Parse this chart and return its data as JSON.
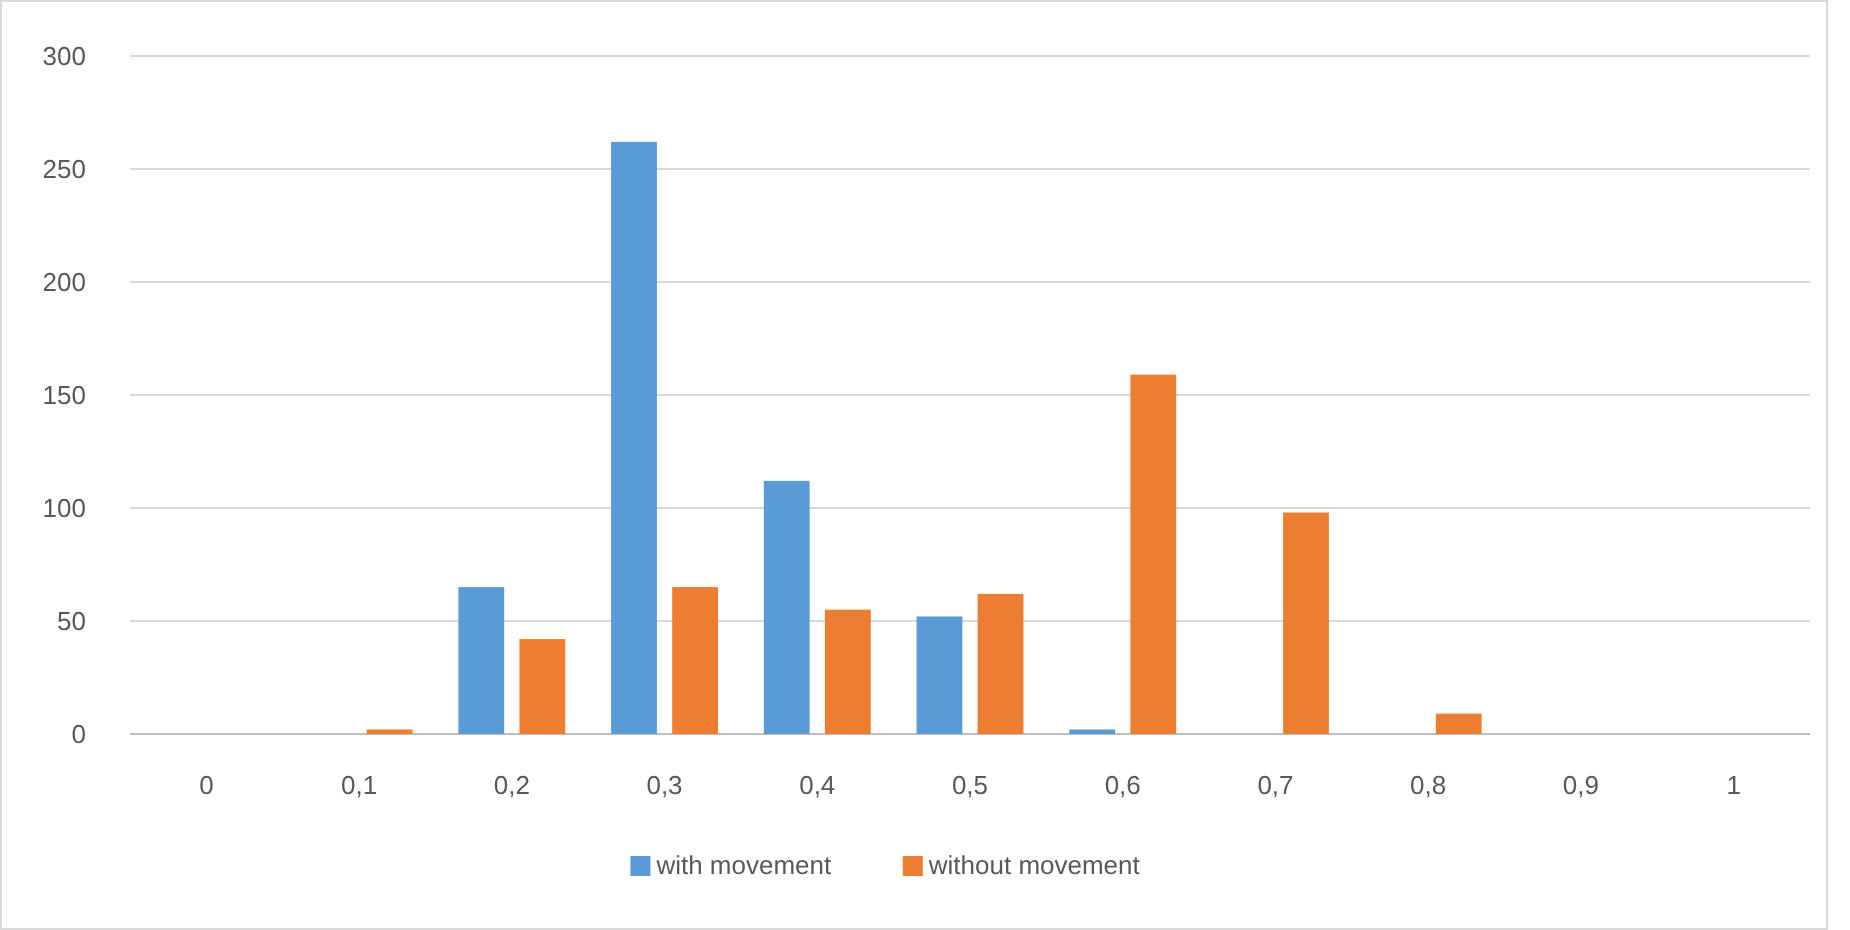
{
  "chart_data": {
    "type": "bar",
    "categories": [
      "0",
      "0,1",
      "0,2",
      "0,3",
      "0,4",
      "0,5",
      "0,6",
      "0,7",
      "0,8",
      "0,9",
      "1"
    ],
    "series": [
      {
        "name": "with movement",
        "color": "#5b9bd5",
        "values": [
          0,
          0,
          65,
          262,
          112,
          52,
          2,
          0,
          0,
          0,
          0
        ]
      },
      {
        "name": "without movement",
        "color": "#ed7d31",
        "values": [
          0,
          2,
          42,
          65,
          55,
          62,
          159,
          98,
          9,
          0,
          0
        ]
      }
    ],
    "ylim": [
      0,
      300
    ],
    "yticks": [
      0,
      50,
      100,
      150,
      200,
      250,
      300
    ],
    "grid": "y",
    "legend": "bottom"
  }
}
